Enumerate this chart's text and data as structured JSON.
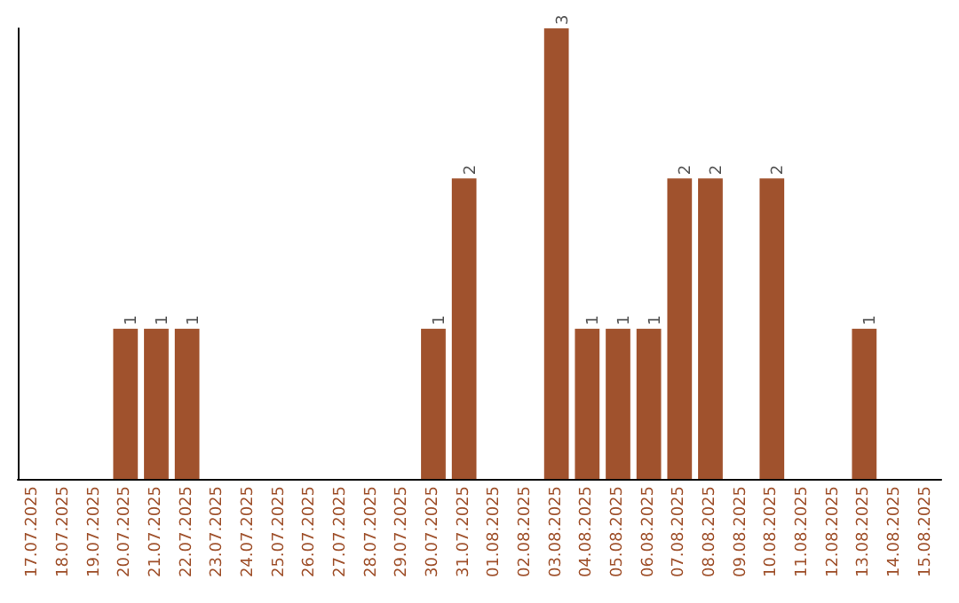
{
  "chart_data": {
    "type": "bar",
    "categories": [
      "17.07.2025",
      "18.07.2025",
      "19.07.2025",
      "20.07.2025",
      "21.07.2025",
      "22.07.2025",
      "23.07.2025",
      "24.07.2025",
      "25.07.2025",
      "26.07.2025",
      "27.07.2025",
      "28.07.2025",
      "29.07.2025",
      "30.07.2025",
      "31.07.2025",
      "01.08.2025",
      "02.08.2025",
      "03.08.2025",
      "04.08.2025",
      "05.08.2025",
      "06.08.2025",
      "07.08.2025",
      "08.08.2025",
      "09.08.2025",
      "10.08.2025",
      "11.08.2025",
      "12.08.2025",
      "13.08.2025",
      "14.08.2025",
      "15.08.2025"
    ],
    "values": [
      0,
      0,
      0,
      1,
      1,
      1,
      0,
      0,
      0,
      0,
      0,
      0,
      0,
      1,
      2,
      0,
      0,
      3,
      1,
      1,
      1,
      2,
      2,
      0,
      2,
      0,
      0,
      1,
      0,
      0
    ],
    "value_labels": [
      null,
      null,
      null,
      "1",
      "1",
      "1",
      null,
      null,
      null,
      null,
      null,
      null,
      null,
      "1",
      "2",
      null,
      null,
      "3",
      "1",
      "1",
      "1",
      "2",
      "2",
      null,
      "2",
      null,
      null,
      "1",
      null,
      null
    ],
    "color": "#a0522d",
    "grid": false,
    "tick_labels": "x"
  }
}
